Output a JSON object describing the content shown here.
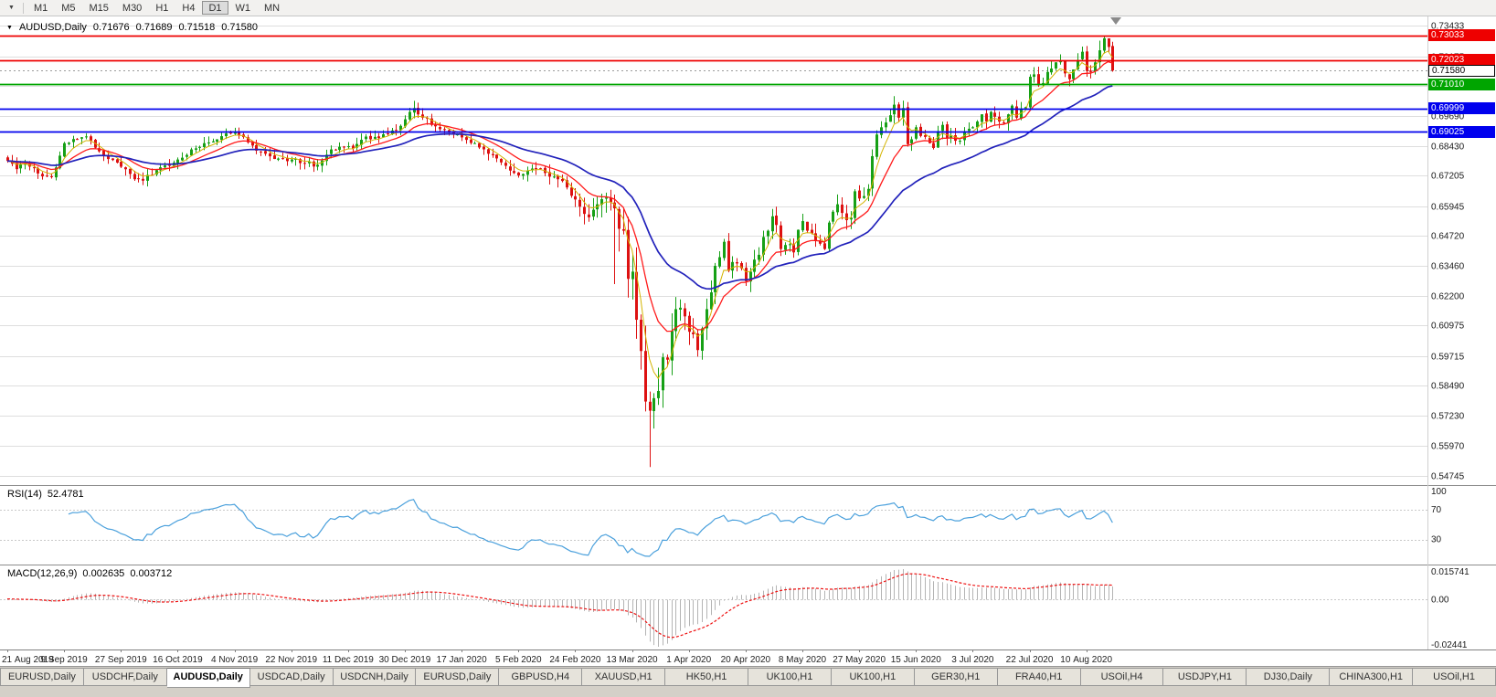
{
  "icons": {
    "toolbar_menu": "▼",
    "symbol_dropdown": "▼",
    "chart_shift_marker": "▼"
  },
  "toolbar": {
    "timeframes": [
      "M1",
      "M5",
      "M15",
      "M30",
      "H1",
      "H4",
      "D1",
      "W1",
      "MN"
    ],
    "active_timeframe": "D1"
  },
  "chart_header": {
    "symbol_title": "AUDUSD,Daily",
    "open": "0.71676",
    "high": "0.71689",
    "low": "0.71518",
    "close": "0.71580"
  },
  "rsi_header": {
    "label": "RSI(14)",
    "value": "52.4781"
  },
  "macd_header": {
    "label": "MACD(12,26,9)",
    "value_main": "0.002635",
    "value_signal": "0.003712"
  },
  "tabs": [
    "EURUSD,Daily",
    "USDCHF,Daily",
    "AUDUSD,Daily",
    "USDCAD,Daily",
    "USDCNH,Daily",
    "EURUSD,Daily",
    "GBPUSD,H4",
    "XAUUSD,H1",
    "HK50,H1",
    "UK100,H1",
    "UK100,H1",
    "GER30,H1",
    "FRA40,H1",
    "USOil,H4",
    "USDJPY,H1",
    "DJ30,Daily",
    "CHINA300,H1",
    "USOil,H1"
  ],
  "active_tab_index": 2,
  "chart_data": {
    "type": "candlestick",
    "symbol": "AUDUSD",
    "timeframe": "Daily",
    "bars": 254,
    "last_close": 0.7158,
    "y_range": [
      0.545,
      0.736
    ],
    "y_ticks": [
      "0.73433",
      "0.72175",
      "0.70950",
      "0.69690",
      "0.68430",
      "0.67205",
      "0.65945",
      "0.64720",
      "0.63460",
      "0.62200",
      "0.60975",
      "0.59715",
      "0.58490",
      "0.57230",
      "0.55970",
      "0.54745"
    ],
    "x_labels": [
      {
        "label": "21 Aug 2019",
        "bar": 0
      },
      {
        "label": "9 Sep 2019",
        "bar": 13
      },
      {
        "label": "27 Sep 2019",
        "bar": 26
      },
      {
        "label": "16 Oct 2019",
        "bar": 39
      },
      {
        "label": "4 Nov 2019",
        "bar": 52
      },
      {
        "label": "22 Nov 2019",
        "bar": 65
      },
      {
        "label": "11 Dec 2019",
        "bar": 78
      },
      {
        "label": "30 Dec 2019",
        "bar": 91
      },
      {
        "label": "17 Jan 2020",
        "bar": 104
      },
      {
        "label": "5 Feb 2020",
        "bar": 117
      },
      {
        "label": "24 Feb 2020",
        "bar": 130
      },
      {
        "label": "13 Mar 2020",
        "bar": 143
      },
      {
        "label": "1 Apr 2020",
        "bar": 156
      },
      {
        "label": "20 Apr 2020",
        "bar": 169
      },
      {
        "label": "8 May 2020",
        "bar": 182
      },
      {
        "label": "27 May 2020",
        "bar": 195
      },
      {
        "label": "15 Jun 2020",
        "bar": 208
      },
      {
        "label": "3 Jul 2020",
        "bar": 221
      },
      {
        "label": "22 Jul 2020",
        "bar": 234
      },
      {
        "label": "10 Aug 2020",
        "bar": 247
      }
    ],
    "price_lines": [
      {
        "value": 0.73033,
        "label": "0.73033",
        "color": "#ee0000",
        "text": "#ffffff",
        "type": "resistance"
      },
      {
        "value": 0.72023,
        "label": "0.72023",
        "color": "#ee0000",
        "text": "#ffffff",
        "type": "resistance"
      },
      {
        "value": 0.7158,
        "label": "0.71580",
        "color": "#ffffff",
        "text": "#000000",
        "type": "current-price"
      },
      {
        "value": 0.7101,
        "label": "0.71010",
        "color": "#00a500",
        "text": "#ffffff",
        "type": "support"
      },
      {
        "value": 0.69999,
        "label": "0.69999",
        "color": "#0000ee",
        "text": "#ffffff",
        "type": "support"
      },
      {
        "value": 0.69025,
        "label": "0.69025",
        "color": "#0000ee",
        "text": "#ffffff",
        "type": "support"
      }
    ],
    "ma_lines": [
      {
        "name": "EMA5",
        "period": 5,
        "color": "#d4b400",
        "width": 1
      },
      {
        "name": "EMA13",
        "period": 13,
        "color": "#ff1a1a",
        "width": 1.3
      },
      {
        "name": "EMA34",
        "period": 34,
        "color": "#2222bb",
        "width": 1.7
      }
    ],
    "rsi": {
      "period": 14,
      "value": 52.4781,
      "levels": [
        70,
        30
      ],
      "scale_labels": [
        "100",
        "70",
        "30"
      ],
      "color": "#4aa0dc"
    },
    "macd": {
      "fast": 12,
      "slow": 26,
      "signal": 9,
      "value_main": 0.002635,
      "value_signal": 0.003712,
      "scale_labels": [
        "0.015741",
        "0.00",
        "-0.02441"
      ],
      "hist_color": "#b4b4b4",
      "signal_color": "#ee1111"
    },
    "candle_up_color": "#16a016",
    "candle_down_color": "#dd1111",
    "grid_color": "#dedede",
    "close_anchors": [
      [
        0,
        0.6782
      ],
      [
        2,
        0.6748
      ],
      [
        4,
        0.6772
      ],
      [
        7,
        0.673
      ],
      [
        10,
        0.6716
      ],
      [
        13,
        0.6856
      ],
      [
        16,
        0.6872
      ],
      [
        18,
        0.6884
      ],
      [
        21,
        0.6822
      ],
      [
        24,
        0.6786
      ],
      [
        26,
        0.6758
      ],
      [
        29,
        0.6706
      ],
      [
        31,
        0.67
      ],
      [
        34,
        0.6744
      ],
      [
        37,
        0.6762
      ],
      [
        39,
        0.6788
      ],
      [
        42,
        0.683
      ],
      [
        45,
        0.6856
      ],
      [
        48,
        0.6872
      ],
      [
        51,
        0.6896
      ],
      [
        53,
        0.689
      ],
      [
        56,
        0.6846
      ],
      [
        59,
        0.6812
      ],
      [
        62,
        0.6792
      ],
      [
        65,
        0.6788
      ],
      [
        68,
        0.6772
      ],
      [
        71,
        0.6766
      ],
      [
        74,
        0.683
      ],
      [
        77,
        0.684
      ],
      [
        79,
        0.6834
      ],
      [
        81,
        0.687
      ],
      [
        84,
        0.6882
      ],
      [
        87,
        0.6896
      ],
      [
        90,
        0.6928
      ],
      [
        92,
        0.6986
      ],
      [
        93,
        0.7002
      ],
      [
        95,
        0.6962
      ],
      [
        98,
        0.6926
      ],
      [
        101,
        0.69
      ],
      [
        104,
        0.688
      ],
      [
        107,
        0.6856
      ],
      [
        110,
        0.6812
      ],
      [
        113,
        0.6776
      ],
      [
        116,
        0.6732
      ],
      [
        117,
        0.6722
      ],
      [
        119,
        0.6742
      ],
      [
        121,
        0.6748
      ],
      [
        123,
        0.6732
      ],
      [
        126,
        0.6706
      ],
      [
        128,
        0.6672
      ],
      [
        130,
        0.6622
      ],
      [
        132,
        0.6562
      ],
      [
        133,
        0.6548
      ],
      [
        135,
        0.6602
      ],
      [
        137,
        0.663
      ],
      [
        139,
        0.6585
      ],
      [
        140,
        0.65
      ],
      [
        141,
        0.6492
      ],
      [
        142,
        0.6292
      ],
      [
        143,
        0.6322
      ],
      [
        144,
        0.6122
      ],
      [
        145,
        0.5992
      ],
      [
        146,
        0.5782
      ],
      [
        147,
        0.5744
      ],
      [
        148,
        0.5796
      ],
      [
        149,
        0.5826
      ],
      [
        150,
        0.5966
      ],
      [
        151,
        0.5956
      ],
      [
        152,
        0.6076
      ],
      [
        153,
        0.6166
      ],
      [
        154,
        0.6172
      ],
      [
        155,
        0.6136
      ],
      [
        156,
        0.6072
      ],
      [
        157,
        0.6062
      ],
      [
        158,
        0.5996
      ],
      [
        159,
        0.6086
      ],
      [
        160,
        0.6166
      ],
      [
        161,
        0.6236
      ],
      [
        162,
        0.6346
      ],
      [
        163,
        0.6382
      ],
      [
        164,
        0.6446
      ],
      [
        165,
        0.6326
      ],
      [
        166,
        0.6362
      ],
      [
        167,
        0.6356
      ],
      [
        168,
        0.6336
      ],
      [
        169,
        0.6282
      ],
      [
        170,
        0.6322
      ],
      [
        171,
        0.6372
      ],
      [
        172,
        0.6392
      ],
      [
        173,
        0.6466
      ],
      [
        174,
        0.6492
      ],
      [
        175,
        0.6552
      ],
      [
        176,
        0.6516
      ],
      [
        177,
        0.6416
      ],
      [
        179,
        0.6436
      ],
      [
        180,
        0.6402
      ],
      [
        181,
        0.6496
      ],
      [
        182,
        0.6532
      ],
      [
        183,
        0.6492
      ],
      [
        185,
        0.6452
      ],
      [
        187,
        0.6416
      ],
      [
        188,
        0.6526
      ],
      [
        190,
        0.6602
      ],
      [
        191,
        0.6566
      ],
      [
        192,
        0.6536
      ],
      [
        193,
        0.6546
      ],
      [
        194,
        0.6656
      ],
      [
        195,
        0.6626
      ],
      [
        196,
        0.6636
      ],
      [
        197,
        0.6666
      ],
      [
        198,
        0.6802
      ],
      [
        199,
        0.6892
      ],
      [
        200,
        0.6922
      ],
      [
        201,
        0.6942
      ],
      [
        202,
        0.6972
      ],
      [
        203,
        0.7016
      ],
      [
        204,
        0.6962
      ],
      [
        205,
        0.7002
      ],
      [
        206,
        0.6852
      ],
      [
        207,
        0.6872
      ],
      [
        208,
        0.6922
      ],
      [
        209,
        0.6886
      ],
      [
        210,
        0.6882
      ],
      [
        211,
        0.6856
      ],
      [
        212,
        0.6836
      ],
      [
        213,
        0.6906
      ],
      [
        214,
        0.6932
      ],
      [
        215,
        0.6876
      ],
      [
        216,
        0.6886
      ],
      [
        217,
        0.6866
      ],
      [
        218,
        0.6866
      ],
      [
        219,
        0.6906
      ],
      [
        220,
        0.6916
      ],
      [
        221,
        0.6922
      ],
      [
        222,
        0.6946
      ],
      [
        223,
        0.6976
      ],
      [
        224,
        0.6946
      ],
      [
        225,
        0.6986
      ],
      [
        226,
        0.6966
      ],
      [
        227,
        0.6946
      ],
      [
        228,
        0.6942
      ],
      [
        229,
        0.6976
      ],
      [
        230,
        0.7012
      ],
      [
        231,
        0.6962
      ],
      [
        232,
        0.6996
      ],
      [
        233,
        0.7006
      ],
      [
        234,
        0.7132
      ],
      [
        235,
        0.7142
      ],
      [
        236,
        0.7096
      ],
      [
        237,
        0.7106
      ],
      [
        238,
        0.7152
      ],
      [
        239,
        0.7166
      ],
      [
        240,
        0.7192
      ],
      [
        241,
        0.7196
      ],
      [
        242,
        0.7146
      ],
      [
        243,
        0.7122
      ],
      [
        244,
        0.7162
      ],
      [
        245,
        0.7202
      ],
      [
        246,
        0.7236
      ],
      [
        247,
        0.7156
      ],
      [
        248,
        0.7152
      ],
      [
        249,
        0.7192
      ],
      [
        250,
        0.7242
      ],
      [
        251,
        0.7292
      ],
      [
        252,
        0.7256
      ],
      [
        253,
        0.7158
      ]
    ],
    "vol_anchors": [
      [
        0,
        0.0045
      ],
      [
        100,
        0.0045
      ],
      [
        128,
        0.006
      ],
      [
        136,
        0.009
      ],
      [
        139,
        0.02
      ],
      [
        143,
        0.022
      ],
      [
        147,
        0.026
      ],
      [
        150,
        0.016
      ],
      [
        155,
        0.011
      ],
      [
        160,
        0.009
      ],
      [
        168,
        0.008
      ],
      [
        180,
        0.0065
      ],
      [
        198,
        0.0075
      ],
      [
        210,
        0.006
      ],
      [
        253,
        0.005
      ]
    ],
    "special_bars": [
      {
        "bar": 93,
        "high": 0.7032
      },
      {
        "bar": 139,
        "low": 0.627
      },
      {
        "bar": 142,
        "low": 0.6214
      },
      {
        "bar": 146,
        "low": 0.5741
      },
      {
        "bar": 147,
        "low": 0.551
      },
      {
        "bar": 148,
        "low": 0.567
      },
      {
        "bar": 250,
        "high": 0.7282
      },
      {
        "bar": 251,
        "high": 0.7302
      },
      {
        "bar": 252,
        "high": 0.7268
      }
    ]
  }
}
